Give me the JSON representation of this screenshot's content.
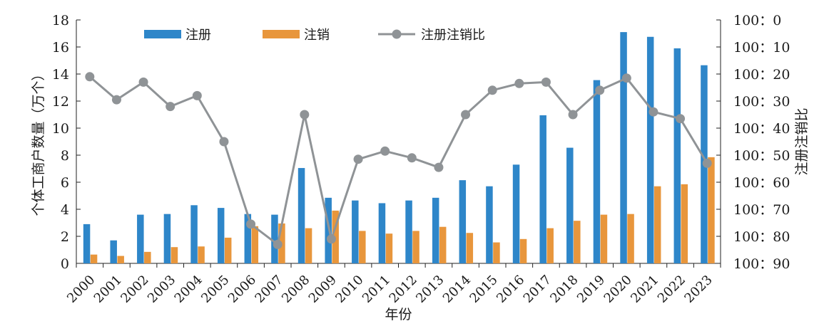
{
  "chart_data": {
    "type": "bar",
    "categories": [
      "2000",
      "2001",
      "2002",
      "2003",
      "2004",
      "2005",
      "2006",
      "2007",
      "2008",
      "2009",
      "2010",
      "2011",
      "2012",
      "2013",
      "2014",
      "2015",
      "2016",
      "2017",
      "2018",
      "2019",
      "2020",
      "2021",
      "2022",
      "2023"
    ],
    "series": [
      {
        "name": "注册",
        "axis": "left",
        "type": "bar",
        "color": "#2e86c9",
        "values": [
          2.9,
          1.7,
          3.6,
          3.65,
          4.3,
          4.1,
          3.65,
          3.6,
          7.05,
          4.85,
          4.65,
          4.45,
          4.65,
          4.85,
          6.15,
          5.7,
          7.3,
          10.95,
          8.55,
          13.55,
          17.1,
          16.75,
          15.9,
          14.65
        ]
      },
      {
        "name": "注销",
        "axis": "left",
        "type": "bar",
        "color": "#e8963c",
        "values": [
          0.65,
          0.55,
          0.85,
          1.2,
          1.25,
          1.9,
          2.75,
          2.95,
          2.6,
          3.9,
          2.4,
          2.2,
          2.4,
          2.7,
          2.25,
          1.55,
          1.8,
          2.6,
          3.15,
          3.6,
          3.65,
          5.7,
          5.85,
          7.85
        ]
      },
      {
        "name": "注册注销比",
        "axis": "right",
        "type": "line",
        "color": "#8f9396",
        "values": [
          21,
          29.5,
          23,
          32,
          28,
          45,
          75.5,
          83,
          35,
          81,
          51.5,
          48.5,
          51,
          54.5,
          35,
          26,
          23.5,
          23,
          35,
          26,
          21.5,
          34,
          36.5,
          53
        ]
      }
    ],
    "xlabel": "年份",
    "ylabel": "个体工商户数量（万个）",
    "y2label": "注册注销比",
    "ylim": [
      0,
      18
    ],
    "yticks": [
      "0",
      "2",
      "4",
      "6",
      "8",
      "10",
      "12",
      "14",
      "16",
      "18"
    ],
    "y2lim": [
      0,
      90
    ],
    "y2ticks": [
      "100：0",
      "100：10",
      "100：20",
      "100：30",
      "100：40",
      "100：50",
      "100：60",
      "100：70",
      "100：80",
      "100：90"
    ],
    "y2_inverted": true,
    "legend": [
      "注册",
      "注销",
      "注册注销比"
    ],
    "legend_position": "top",
    "grid": false
  }
}
